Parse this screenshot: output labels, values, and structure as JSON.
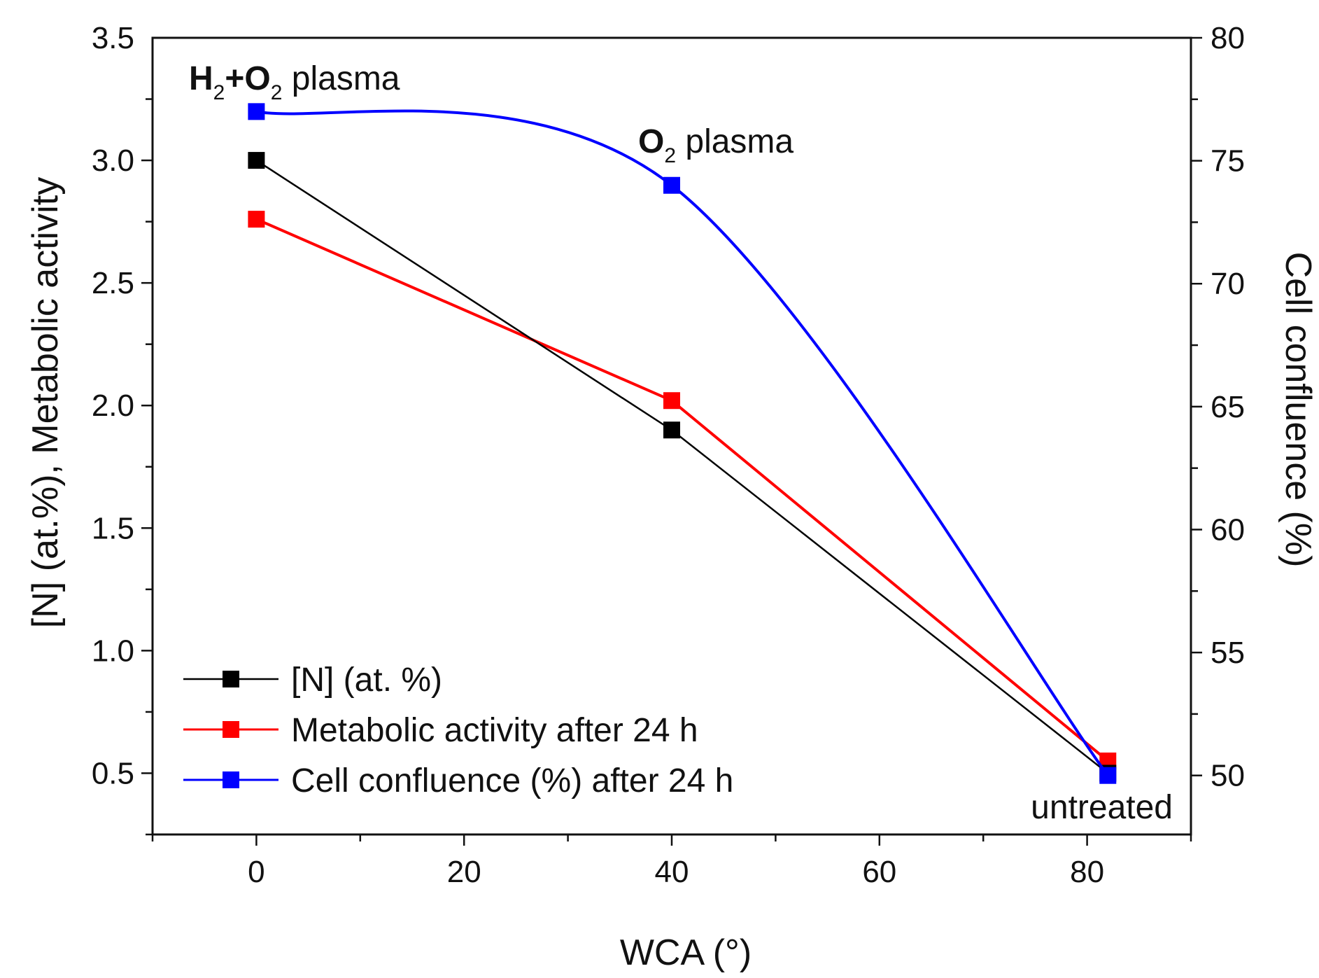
{
  "chart_data": {
    "type": "line",
    "xlabel": "WCA (°)",
    "ylabel_left": "[N] (at.%), Metabolic activity",
    "ylabel_right": "Cell confluence (%)",
    "xlim": [
      -10,
      90
    ],
    "ylim_left": [
      0.25,
      3.5
    ],
    "ylim_right": [
      47.6,
      80
    ],
    "x_ticks": [
      0,
      20,
      40,
      60,
      80
    ],
    "y_left_ticks": [
      0.5,
      1.0,
      1.5,
      2.0,
      2.5,
      3.0,
      3.5
    ],
    "y_left_tick_labels": [
      "0.5",
      "1.0",
      "1.5",
      "2.0",
      "2.5",
      "3.0",
      "3.5"
    ],
    "y_right_ticks": [
      50,
      55,
      60,
      65,
      70,
      75,
      80
    ],
    "series": [
      {
        "name": "[N] (at. %)",
        "axis": "left",
        "color": "#000000",
        "smooth": false,
        "x": [
          0,
          40,
          82
        ],
        "y": [
          3.0,
          1.9,
          0.5
        ]
      },
      {
        "name": "Metabolic activity after 24 h",
        "axis": "left",
        "color": "#ff0000",
        "smooth": false,
        "x": [
          0,
          40,
          82
        ],
        "y": [
          2.76,
          2.02,
          0.55
        ]
      },
      {
        "name": "Cell confluence (%) after 24 h",
        "axis": "right",
        "color": "#0000ff",
        "smooth": true,
        "x": [
          0,
          40,
          82
        ],
        "y": [
          77,
          74,
          50
        ]
      }
    ],
    "annotations": {
      "h2o2": {
        "h": "H",
        "sub1": "2",
        "plus_o": "+O",
        "sub2": "2",
        "rest": " plasma"
      },
      "o2": {
        "o": "O",
        "sub": "2",
        "rest": " plasma"
      },
      "untreated": "untreated"
    },
    "legend_position": "bottom-left"
  }
}
